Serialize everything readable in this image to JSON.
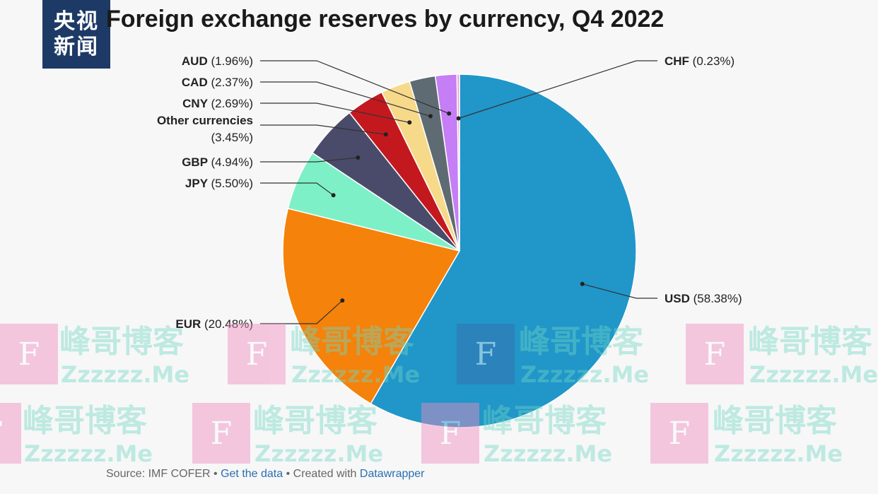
{
  "header": {
    "logo_line1": "央视",
    "logo_line2": "新闻"
  },
  "chart_data": {
    "type": "pie",
    "title": "Foreign exchange reserves by currency, Q4 2022",
    "slices": [
      {
        "label": "USD",
        "value": 58.38,
        "display": "(58.38%)",
        "color": "#2196c9"
      },
      {
        "label": "EUR",
        "value": 20.48,
        "display": "(20.48%)",
        "color": "#f5820a"
      },
      {
        "label": "JPY",
        "value": 5.5,
        "display": "(5.50%)",
        "color": "#7ef0c8"
      },
      {
        "label": "GBP",
        "value": 4.94,
        "display": "(4.94%)",
        "color": "#4a4a6a"
      },
      {
        "label": "Other currencies",
        "value": 3.45,
        "display": "(3.45%)",
        "color": "#c4181f"
      },
      {
        "label": "CNY",
        "value": 2.69,
        "display": "(2.69%)",
        "color": "#f7d98a"
      },
      {
        "label": "CAD",
        "value": 2.37,
        "display": "(2.37%)",
        "color": "#5e6b73"
      },
      {
        "label": "AUD",
        "value": 1.96,
        "display": "(1.96%)",
        "color": "#c57ef5"
      },
      {
        "label": "CHF",
        "value": 0.23,
        "display": "(0.23%)",
        "color": "#f0a0c8"
      }
    ]
  },
  "footer": {
    "source_text": "Source: IMF COFER",
    "sep1": " • ",
    "get_data": "Get the data",
    "sep2": " • Created with ",
    "datawrapper": "Datawrapper"
  },
  "watermark": {
    "box_letter": "F",
    "cn_text": "峰哥博客",
    "en_text": "Zzzzzz.Me"
  }
}
